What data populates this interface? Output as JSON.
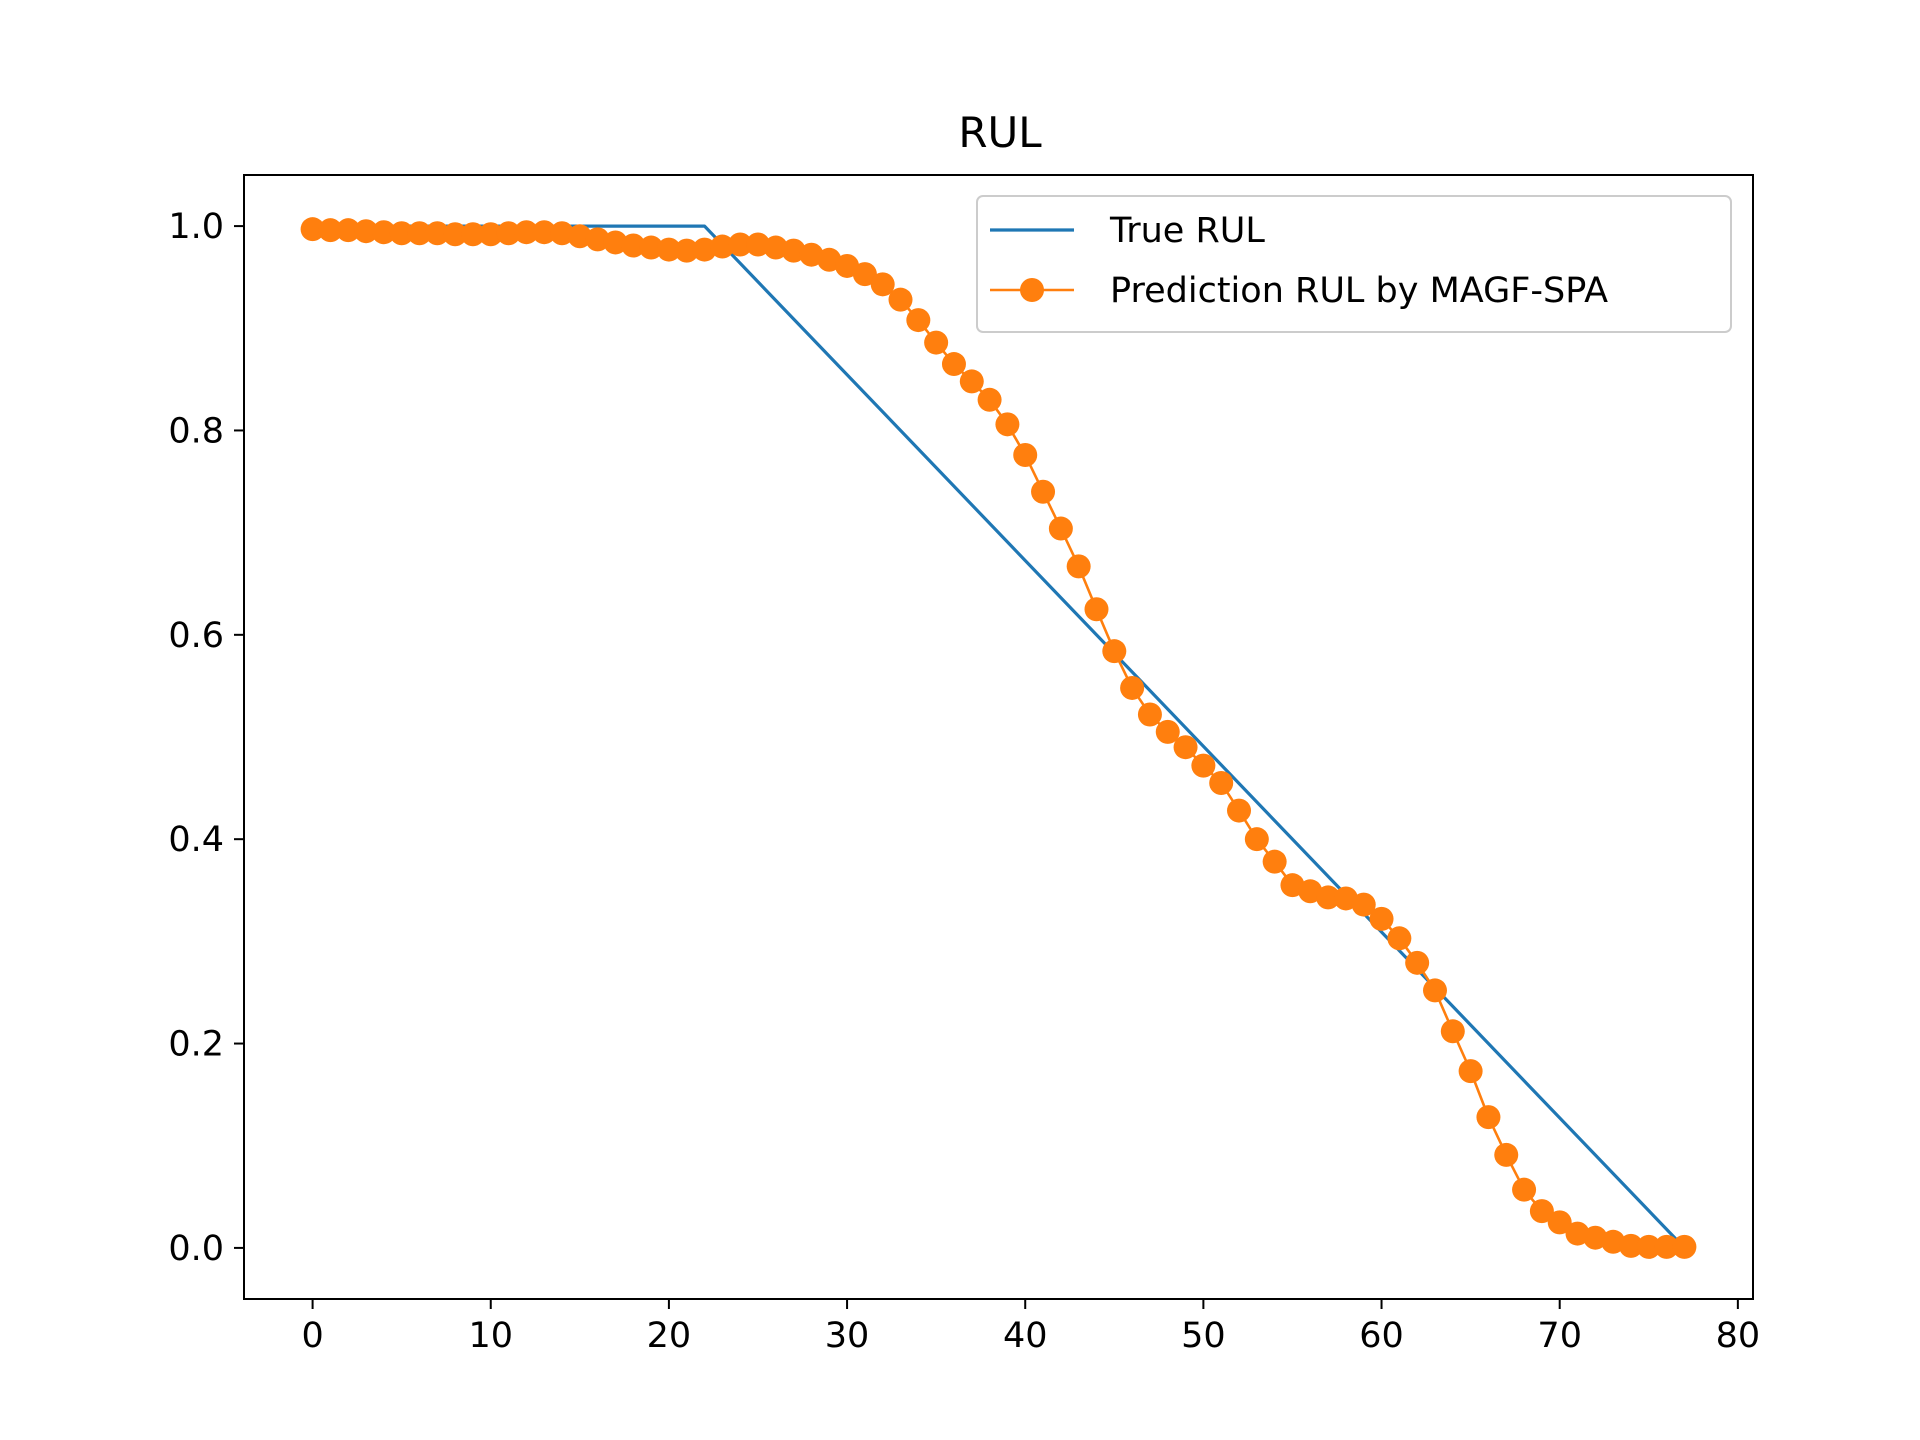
{
  "chart_data": {
    "type": "line",
    "title": "RUL",
    "xlabel": "",
    "ylabel": "",
    "xlim": [
      -3.85,
      80.85
    ],
    "ylim": [
      -0.05,
      1.05
    ],
    "xticks": [
      0,
      10,
      20,
      30,
      40,
      50,
      60,
      70,
      80
    ],
    "yticks": [
      0.0,
      0.2,
      0.4,
      0.6,
      0.8,
      1.0
    ],
    "xtick_labels": [
      "0",
      "10",
      "20",
      "30",
      "40",
      "50",
      "60",
      "70",
      "80"
    ],
    "ytick_labels": [
      "0.0",
      "0.2",
      "0.4",
      "0.6",
      "0.8",
      "1.0"
    ],
    "grid": false,
    "legend_position": "top-right",
    "series": [
      {
        "name": "True RUL",
        "color": "#1f77b4",
        "marker": "none",
        "x": [
          0,
          22,
          77
        ],
        "y": [
          1.0,
          1.0,
          0.0
        ]
      },
      {
        "name": "Prediction RUL by MAGF-SPA",
        "color": "#ff7f0e",
        "marker": "circle",
        "x": [
          0,
          1,
          2,
          3,
          4,
          5,
          6,
          7,
          8,
          9,
          10,
          11,
          12,
          13,
          14,
          15,
          16,
          17,
          18,
          19,
          20,
          21,
          22,
          23,
          24,
          25,
          26,
          27,
          28,
          29,
          30,
          31,
          32,
          33,
          34,
          35,
          36,
          37,
          38,
          39,
          40,
          41,
          42,
          43,
          44,
          45,
          46,
          47,
          48,
          49,
          50,
          51,
          52,
          53,
          54,
          55,
          56,
          57,
          58,
          59,
          60,
          61,
          62,
          63,
          64,
          65,
          66,
          67,
          68,
          69,
          70,
          71,
          72,
          73,
          74,
          75,
          76,
          77
        ],
        "y": [
          0.997,
          0.996,
          0.996,
          0.995,
          0.994,
          0.993,
          0.993,
          0.993,
          0.992,
          0.992,
          0.992,
          0.993,
          0.994,
          0.994,
          0.993,
          0.99,
          0.987,
          0.984,
          0.981,
          0.979,
          0.977,
          0.976,
          0.977,
          0.98,
          0.982,
          0.982,
          0.979,
          0.976,
          0.972,
          0.967,
          0.961,
          0.953,
          0.943,
          0.928,
          0.908,
          0.886,
          0.865,
          0.848,
          0.83,
          0.806,
          0.776,
          0.74,
          0.704,
          0.667,
          0.625,
          0.584,
          0.548,
          0.522,
          0.505,
          0.49,
          0.472,
          0.455,
          0.428,
          0.4,
          0.378,
          0.355,
          0.349,
          0.343,
          0.342,
          0.336,
          0.322,
          0.303,
          0.279,
          0.252,
          0.212,
          0.173,
          0.128,
          0.091,
          0.057,
          0.036,
          0.025,
          0.014,
          0.01,
          0.006,
          0.002,
          0.001,
          0.001,
          0.001
        ]
      }
    ]
  }
}
